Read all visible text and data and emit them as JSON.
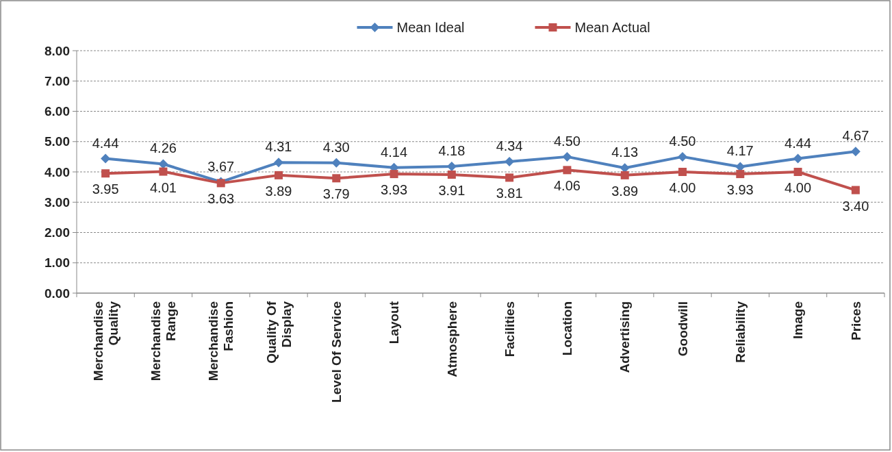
{
  "chart_data": {
    "type": "line",
    "categories": [
      "Merchandise Quality",
      "Merchandise Range",
      "Merchandise Fashion",
      "Quality Of Display",
      "Level Of Service",
      "Layout",
      "Atmosphere",
      "Facilities",
      "Location",
      "Advertising",
      "Goodwill",
      "Reliability",
      "Image",
      "Prices"
    ],
    "series": [
      {
        "name": "Mean Ideal",
        "color": "#4f81bd",
        "marker": "diamond",
        "values": [
          4.44,
          4.26,
          3.67,
          4.31,
          4.3,
          4.14,
          4.18,
          4.34,
          4.5,
          4.13,
          4.5,
          4.17,
          4.44,
          4.67
        ],
        "value_labels": [
          "4.44",
          "4.26",
          "3.67",
          "4.31",
          "4.30",
          "4.14",
          "4.18",
          "4.34",
          "4.50",
          "4.13",
          "4.50",
          "4.17",
          "4.44",
          "4.67"
        ]
      },
      {
        "name": "Mean Actual",
        "color": "#c0504d",
        "marker": "square",
        "values": [
          3.95,
          4.01,
          3.63,
          3.89,
          3.79,
          3.93,
          3.91,
          3.81,
          4.06,
          3.89,
          4.0,
          3.93,
          4.0,
          3.4
        ],
        "value_labels": [
          "3.95",
          "4.01",
          "3.63",
          "3.89",
          "3.79",
          "3.93",
          "3.91",
          "3.81",
          "4.06",
          "3.89",
          "4.00",
          "3.93",
          "4.00",
          "3.40"
        ]
      }
    ],
    "ylim": [
      0,
      8
    ],
    "yticks": [
      {
        "value": 0,
        "label": "0.00"
      },
      {
        "value": 1,
        "label": "1.00"
      },
      {
        "value": 2,
        "label": "2.00"
      },
      {
        "value": 3,
        "label": "3.00"
      },
      {
        "value": 4,
        "label": "4.00"
      },
      {
        "value": 5,
        "label": "5.00"
      },
      {
        "value": 6,
        "label": "6.00"
      },
      {
        "value": 7,
        "label": "7.00"
      },
      {
        "value": 8,
        "label": "8.00"
      }
    ],
    "grid": "y",
    "legend": "top",
    "line_style": "solid"
  }
}
